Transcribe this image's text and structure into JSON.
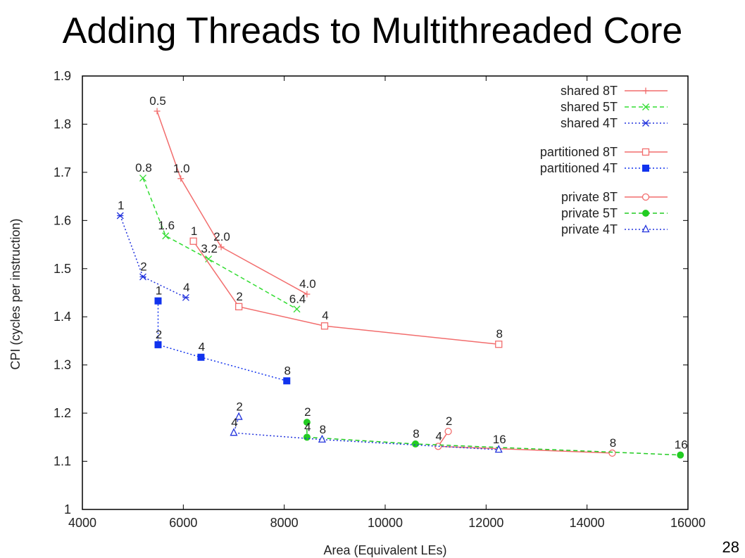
{
  "slide": {
    "title": "Adding Threads to Multithreaded Core",
    "page_number": "28"
  },
  "chart_data": {
    "type": "scatter",
    "xlabel": "Area (Equivalent LEs)",
    "ylabel": "CPI (cycles per instruction)",
    "xlim": [
      4000,
      16000
    ],
    "ylim": [
      1,
      1.9
    ],
    "xticks": [
      4000,
      6000,
      8000,
      10000,
      12000,
      14000,
      16000
    ],
    "yticks": [
      1,
      1.1,
      1.2,
      1.3,
      1.4,
      1.5,
      1.6,
      1.7,
      1.8,
      1.9
    ],
    "grid": false,
    "legend_position": "top-right",
    "series": [
      {
        "name": "shared 8T",
        "group": 0,
        "color": "#f26d6d",
        "dash": "solid",
        "marker": "plus",
        "points": [
          {
            "x": 5480,
            "y": 1.827,
            "label": "0.5"
          },
          {
            "x": 5950,
            "y": 1.687,
            "label": "1.0"
          },
          {
            "x": 6750,
            "y": 1.545,
            "label": "2.0"
          },
          {
            "x": 8450,
            "y": 1.447,
            "label": "4.0"
          }
        ]
      },
      {
        "name": "shared 5T",
        "group": 0,
        "color": "#33dd33",
        "dash": "dashed",
        "marker": "x",
        "points": [
          {
            "x": 5200,
            "y": 1.688,
            "label": "0.8"
          },
          {
            "x": 5650,
            "y": 1.568,
            "label": "1.6"
          },
          {
            "x": 6500,
            "y": 1.52,
            "label": "3.2"
          },
          {
            "x": 8250,
            "y": 1.416,
            "label": "6.4"
          }
        ]
      },
      {
        "name": "shared 4T",
        "group": 0,
        "color": "#2233dd",
        "dash": "dotted",
        "marker": "star",
        "points": [
          {
            "x": 4750,
            "y": 1.61,
            "label": "1"
          },
          {
            "x": 5200,
            "y": 1.483,
            "label": "2"
          },
          {
            "x": 6050,
            "y": 1.44,
            "label": "4"
          }
        ]
      },
      {
        "name": "partitioned 8T",
        "group": 1,
        "color": "#f26d6d",
        "dash": "solid",
        "marker": "square-open",
        "points": [
          {
            "x": 6200,
            "y": 1.557,
            "label": "1"
          },
          {
            "x": 7100,
            "y": 1.421,
            "label": "2"
          },
          {
            "x": 8800,
            "y": 1.381,
            "label": "4"
          },
          {
            "x": 12250,
            "y": 1.343,
            "label": "8"
          }
        ]
      },
      {
        "name": "partitioned 4T",
        "group": 1,
        "color": "#1133ee",
        "dash": "dotted",
        "marker": "square-filled",
        "points": [
          {
            "x": 5500,
            "y": 1.433,
            "label": "1"
          },
          {
            "x": 5500,
            "y": 1.342,
            "label": "2"
          },
          {
            "x": 6350,
            "y": 1.316,
            "label": "4"
          },
          {
            "x": 8050,
            "y": 1.267,
            "label": "8"
          }
        ]
      },
      {
        "name": "private 8T",
        "group": 2,
        "color": "#f26d6d",
        "dash": "solid",
        "marker": "circle-open",
        "points": [
          {
            "x": 11250,
            "y": 1.162,
            "label": "2"
          },
          {
            "x": 11050,
            "y": 1.131,
            "label": "4"
          },
          {
            "x": 14500,
            "y": 1.117,
            "label": "8"
          }
        ]
      },
      {
        "name": "private 5T",
        "group": 2,
        "color": "#22cc22",
        "dash": "dashed",
        "marker": "circle-filled",
        "points": [
          {
            "x": 8450,
            "y": 1.181,
            "label": "2"
          },
          {
            "x": 8450,
            "y": 1.15,
            "label": "4"
          },
          {
            "x": 10600,
            "y": 1.136,
            "label": "8"
          },
          {
            "x": 15850,
            "y": 1.113,
            "label": "16"
          }
        ]
      },
      {
        "name": "private 4T",
        "group": 2,
        "color": "#2233dd",
        "dash": "dotted",
        "marker": "triangle-open",
        "points": [
          {
            "x": 7100,
            "y": 1.192,
            "label": "2"
          },
          {
            "x": 7000,
            "y": 1.159,
            "label": "4"
          },
          {
            "x": 8750,
            "y": 1.145,
            "label": "8"
          },
          {
            "x": 12250,
            "y": 1.124,
            "label": "16"
          }
        ]
      }
    ]
  }
}
